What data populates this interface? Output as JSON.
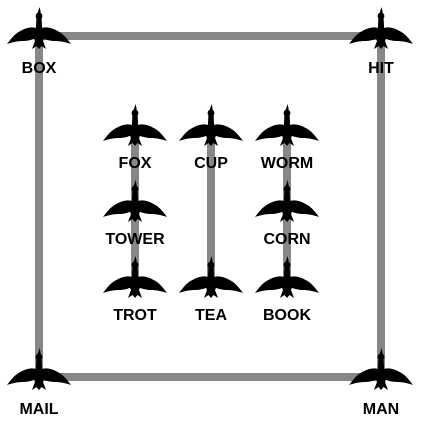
{
  "colors": {
    "line": "#878787",
    "bird": "#000000",
    "label": "#000000",
    "background": "#ffffff"
  },
  "icon": "goose-icon",
  "nodes": [
    {
      "id": "box",
      "label": "BOX"
    },
    {
      "id": "hit",
      "label": "HIT"
    },
    {
      "id": "mail",
      "label": "MAIL"
    },
    {
      "id": "man",
      "label": "MAN"
    },
    {
      "id": "fox",
      "label": "FOX"
    },
    {
      "id": "tower",
      "label": "TOWER"
    },
    {
      "id": "trot",
      "label": "TROT"
    },
    {
      "id": "cup",
      "label": "CUP"
    },
    {
      "id": "tea",
      "label": "TEA"
    },
    {
      "id": "worm",
      "label": "WORM"
    },
    {
      "id": "corn",
      "label": "CORN"
    },
    {
      "id": "book",
      "label": "BOOK"
    }
  ],
  "edges": [
    [
      "box",
      "hit"
    ],
    [
      "hit",
      "man"
    ],
    [
      "man",
      "mail"
    ],
    [
      "mail",
      "box"
    ],
    [
      "fox",
      "tower"
    ],
    [
      "tower",
      "trot"
    ],
    [
      "cup",
      "tea"
    ],
    [
      "worm",
      "corn"
    ],
    [
      "corn",
      "book"
    ]
  ]
}
